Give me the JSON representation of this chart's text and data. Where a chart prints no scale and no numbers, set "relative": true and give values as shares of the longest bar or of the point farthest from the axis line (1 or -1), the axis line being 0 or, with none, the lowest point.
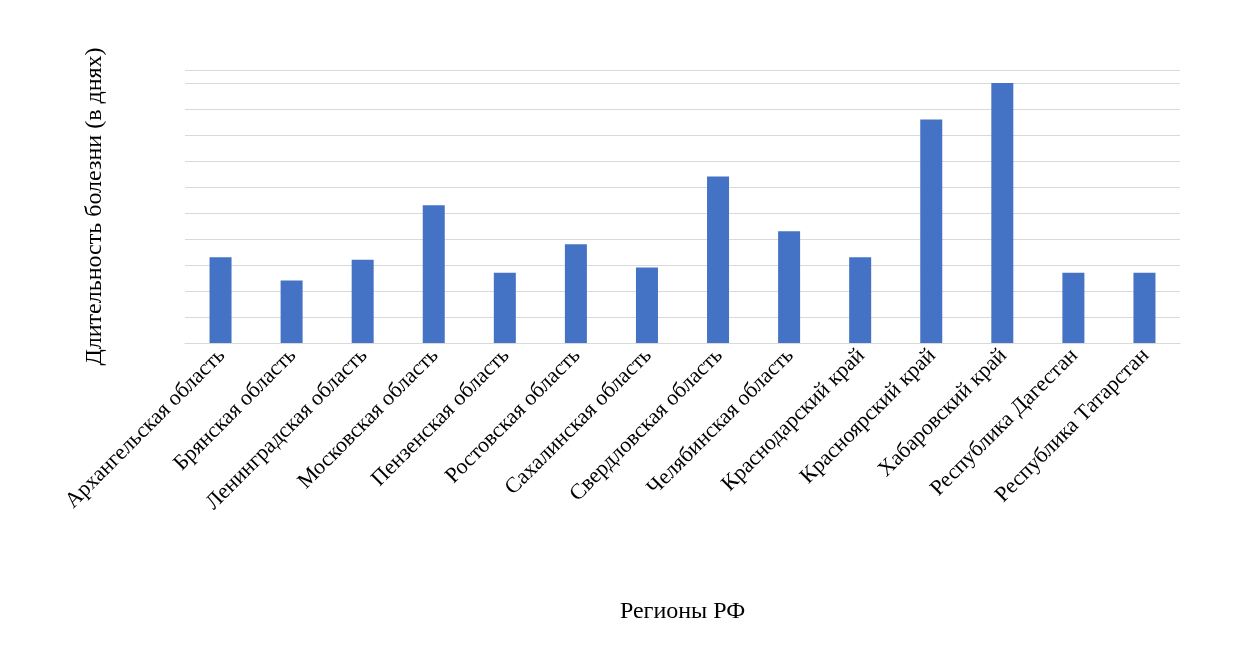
{
  "chart_data": {
    "type": "bar",
    "xlabel": "Регионы РФ",
    "ylabel": "Длительность болезни (в днях)",
    "categories": [
      "Архангельская область",
      "Брянская область",
      "Ленинградская область",
      "Московская область",
      "Пензенская область",
      "Ростовская область",
      "Сахалинская область",
      "Свердловская область",
      "Челябинская область",
      "Краснодарский край",
      "Красноярский край",
      "Хабаровский край",
      "Республика Дагестан",
      "Республика Татарстан"
    ],
    "values": [
      0.33,
      0.24,
      0.32,
      0.53,
      0.27,
      0.38,
      0.29,
      0.64,
      0.43,
      0.33,
      0.86,
      1,
      0.27,
      0.27
    ],
    "color": "#4472c4",
    "relative": true,
    "grid": "y"
  }
}
